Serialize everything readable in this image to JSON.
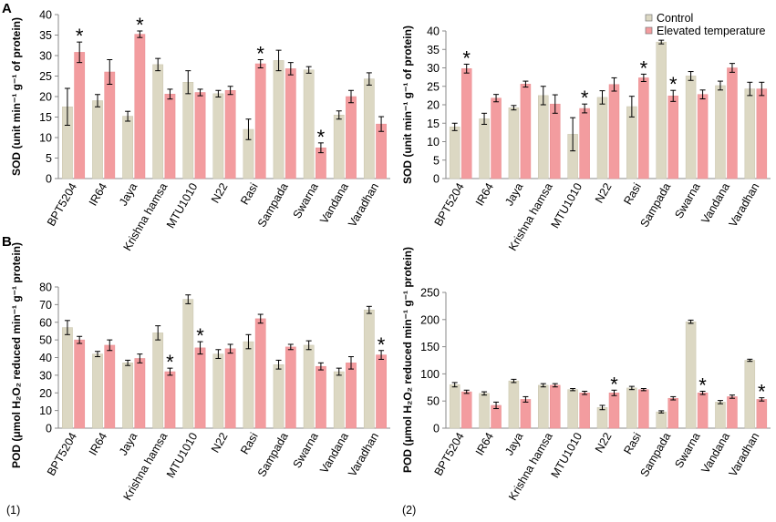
{
  "figure": {
    "panel_labels": [
      "A",
      "B"
    ],
    "footnotes": [
      "(1)",
      "(2)"
    ],
    "legend": [
      {
        "label": "Control",
        "color": "#dcd8c3"
      },
      {
        "label": "Elevated temperature",
        "color": "#f39c9f"
      }
    ],
    "colors": {
      "control": "#dcd8c3",
      "elevated": "#f39c9f",
      "axis": "#8a8a8a",
      "errorbar": "#000000"
    }
  },
  "chart_data": [
    {
      "id": "A1",
      "type": "bar",
      "ylabel": "SOD (unit min⁻¹ g⁻¹ of protein)",
      "ylim": [
        0,
        40
      ],
      "yticks": [
        0,
        5,
        10,
        15,
        20,
        25,
        30,
        35,
        40
      ],
      "categories": [
        "BPT5204",
        "IR64",
        "Jaya",
        "Krishna hamsa",
        "MTU1010",
        "N22",
        "Rasi",
        "Sampada",
        "Swarna",
        "Vandana",
        "Varadhan"
      ],
      "series": [
        {
          "name": "Control",
          "values": [
            17.5,
            19,
            15.2,
            27.8,
            23.5,
            20.7,
            12,
            28.8,
            26.5,
            15.5,
            24.3
          ],
          "errors": [
            4.5,
            1.5,
            1.2,
            1.5,
            2.8,
            0.8,
            2.5,
            2.5,
            0.8,
            1,
            1.5
          ]
        },
        {
          "name": "Elevated temperature",
          "values": [
            30.8,
            26,
            35.2,
            20.6,
            21,
            21.5,
            28,
            26.8,
            7.5,
            20,
            13.3
          ],
          "errors": [
            2.5,
            3,
            0.8,
            1.2,
            0.8,
            1,
            1,
            1.5,
            1.2,
            1.5,
            1.8
          ]
        }
      ],
      "significance": [
        {
          "category": "BPT5204",
          "series": "Elevated temperature"
        },
        {
          "category": "Jaya",
          "series": "Elevated temperature"
        },
        {
          "category": "Rasi",
          "series": "Elevated temperature"
        },
        {
          "category": "Swarna",
          "series": "Elevated temperature"
        }
      ]
    },
    {
      "id": "A2",
      "type": "bar",
      "ylabel": "SOD (unit min⁻¹ g⁻¹ of protein)",
      "ylim": [
        0,
        40
      ],
      "yticks": [
        0,
        5,
        10,
        15,
        20,
        25,
        30,
        35,
        40
      ],
      "legend_position": "top-right",
      "categories": [
        "BPT5204",
        "IR64",
        "Jaya",
        "Krishna hamsa",
        "MTU1010",
        "N22",
        "Rasi",
        "Sampada",
        "Swarna",
        "Vandana",
        "Varadhan"
      ],
      "series": [
        {
          "name": "Control",
          "values": [
            14,
            16.2,
            19.2,
            22.5,
            12,
            22,
            19.5,
            37,
            27.8,
            25.2,
            24.3
          ],
          "errors": [
            1,
            1.5,
            0.6,
            2.5,
            4.5,
            1.8,
            2.8,
            0.5,
            1.2,
            1.2,
            1.8
          ]
        },
        {
          "name": "Elevated temperature",
          "values": [
            29.8,
            21.8,
            25.6,
            20.2,
            19,
            25.5,
            27.3,
            22.4,
            22.8,
            30,
            24.3
          ],
          "errors": [
            1.2,
            1,
            0.8,
            2.5,
            1.2,
            1.8,
            1,
            1.5,
            1.2,
            1.2,
            1.8
          ]
        }
      ],
      "significance": [
        {
          "category": "BPT5204",
          "series": "Elevated temperature"
        },
        {
          "category": "MTU1010",
          "series": "Elevated temperature"
        },
        {
          "category": "Rasi",
          "series": "Elevated temperature"
        },
        {
          "category": "Sampada",
          "series": "Elevated temperature"
        }
      ]
    },
    {
      "id": "B1",
      "type": "bar",
      "ylabel": "POD (μmol H₂O₂ reduced min⁻¹ g⁻¹ protein)",
      "ylim": [
        0,
        80
      ],
      "yticks": [
        0,
        10,
        20,
        30,
        40,
        50,
        60,
        70,
        80
      ],
      "categories": [
        "BPT5204",
        "IR64",
        "Jaya",
        "Krishna hamsa",
        "MTU1010",
        "N22",
        "Rasi",
        "Sampada",
        "Swarna",
        "Vandana",
        "Varadhan"
      ],
      "series": [
        {
          "name": "Control",
          "values": [
            57,
            42,
            37,
            54,
            73,
            42,
            49,
            36,
            47,
            32,
            67
          ],
          "errors": [
            4,
            1.5,
            1.5,
            4,
            2.5,
            2.5,
            4,
            2.5,
            2.5,
            2,
            2
          ]
        },
        {
          "name": "Elevated temperature",
          "values": [
            50,
            47,
            39.5,
            32,
            45.5,
            45,
            62,
            46,
            35,
            37,
            41.5
          ],
          "errors": [
            2,
            3,
            2.5,
            2,
            3.5,
            2.5,
            2.5,
            1.5,
            2,
            3.5,
            2.5
          ]
        }
      ],
      "significance": [
        {
          "category": "Krishna hamsa",
          "series": "Elevated temperature"
        },
        {
          "category": "MTU1010",
          "series": "Elevated temperature"
        },
        {
          "category": "Varadhan",
          "series": "Elevated temperature"
        }
      ]
    },
    {
      "id": "B2",
      "type": "bar",
      "ylabel": "POD (μmol H₂O₂ reduced min⁻¹ g⁻¹ protein)",
      "ylim": [
        0,
        250
      ],
      "yticks": [
        0,
        50,
        100,
        150,
        200,
        250
      ],
      "categories": [
        "BPT5204",
        "IR64",
        "Jaya",
        "Krishna hamsa",
        "MTU1010",
        "N22",
        "Rasi",
        "Sampada",
        "Swarna",
        "Vandana",
        "Varadhan"
      ],
      "series": [
        {
          "name": "Control",
          "values": [
            80,
            64,
            87,
            79,
            71,
            38,
            74,
            30,
            196,
            48,
            125
          ],
          "errors": [
            4,
            3,
            3,
            3,
            2,
            4,
            3,
            2,
            3,
            3,
            2
          ]
        },
        {
          "name": "Elevated temperature",
          "values": [
            67,
            42,
            53,
            79,
            65,
            65,
            71,
            55,
            65,
            58,
            53
          ],
          "errors": [
            3,
            6,
            5,
            3,
            3,
            5,
            2,
            3,
            3,
            3,
            3
          ]
        }
      ],
      "significance": [
        {
          "category": "N22",
          "series": "Elevated temperature"
        },
        {
          "category": "Swarna",
          "series": "Elevated temperature"
        },
        {
          "category": "Varadhan",
          "series": "Elevated temperature"
        }
      ]
    }
  ]
}
